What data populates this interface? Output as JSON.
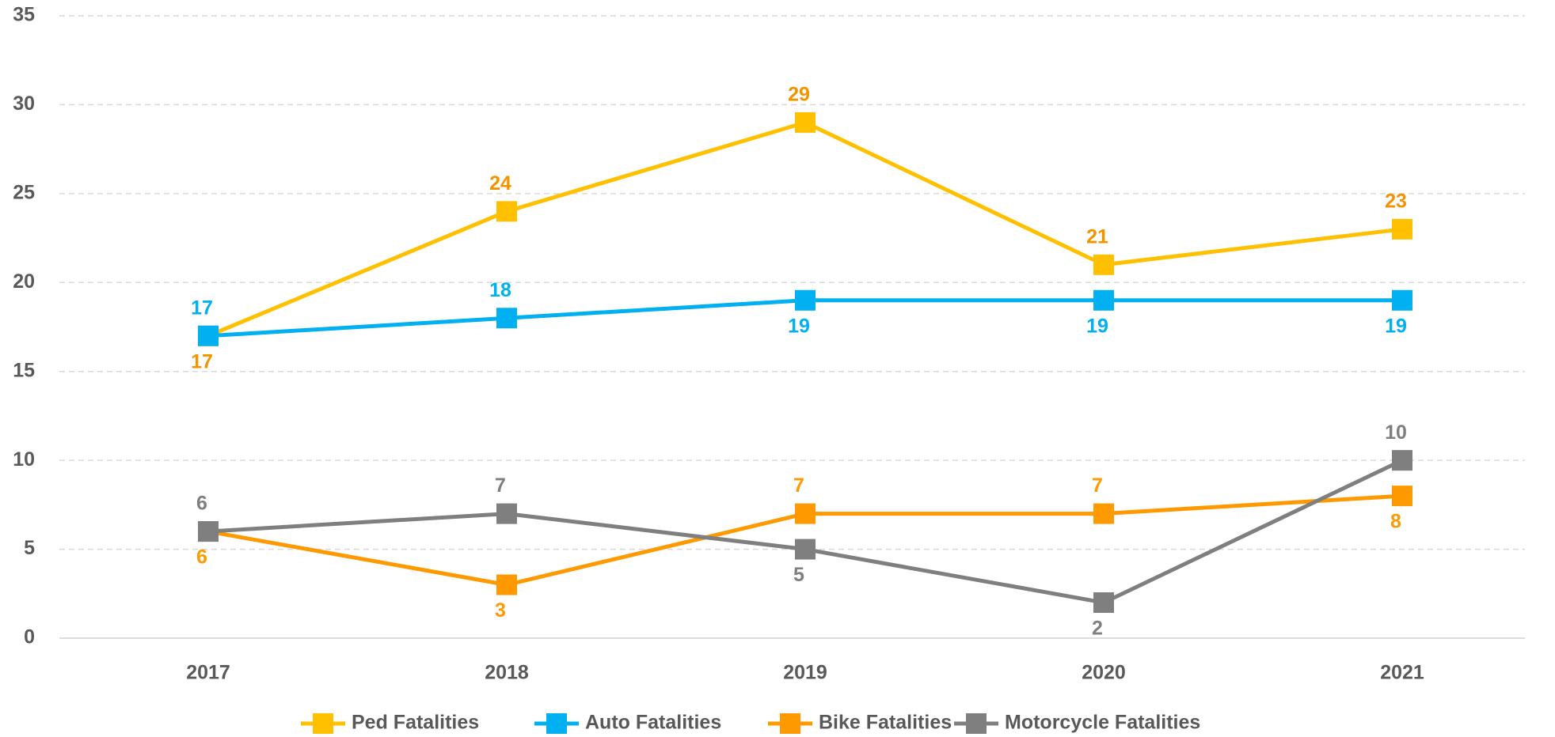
{
  "chart_data": {
    "type": "line",
    "categories": [
      "2017",
      "2018",
      "2019",
      "2020",
      "2021"
    ],
    "series": [
      {
        "name": "Ped Fatalities",
        "color": "#ffc000",
        "label_color": "#f29400",
        "values": [
          17,
          24,
          29,
          21,
          23
        ]
      },
      {
        "name": "Auto Fatalities",
        "color": "#00b0f0",
        "label_color": "#00b0f0",
        "values": [
          17,
          18,
          19,
          19,
          19
        ]
      },
      {
        "name": "Bike Fatalities",
        "color": "#ff9900",
        "label_color": "#ff9900",
        "values": [
          6,
          3,
          7,
          7,
          8
        ]
      },
      {
        "name": "Motorcycle Fatalities",
        "color": "#7f7f7f",
        "label_color": "#7f7f7f",
        "values": [
          6,
          7,
          5,
          2,
          10
        ]
      }
    ],
    "ylim": [
      0,
      35
    ],
    "yticks": [
      0,
      5,
      10,
      15,
      20,
      25,
      30,
      35
    ],
    "grid": true,
    "legend": "bottom"
  }
}
